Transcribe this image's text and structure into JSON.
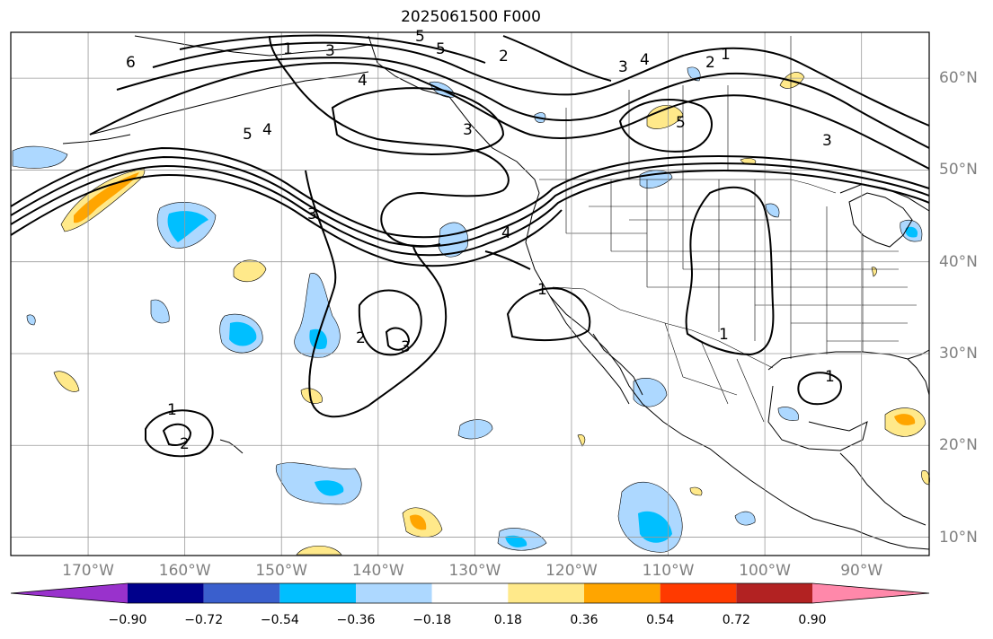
{
  "title": "2025061500 F000",
  "map": {
    "extent": {
      "lon": [
        -178,
        -83
      ],
      "lat": [
        8,
        65
      ]
    },
    "longitude_labels": [
      "170°W",
      "160°W",
      "150°W",
      "140°W",
      "130°W",
      "120°W",
      "110°W",
      "100°W",
      "90°W"
    ],
    "latitude_labels": [
      "60°N",
      "50°N",
      "40°N",
      "30°N",
      "20°N",
      "10°N"
    ],
    "gridlines": true,
    "contour_labels": [
      "6",
      "5",
      "1",
      "3",
      "2",
      "4",
      "5",
      "3",
      "4",
      "2",
      "1",
      "5",
      "4",
      "3",
      "5",
      "3",
      "3",
      "4",
      "1",
      "3",
      "1",
      "1",
      "2",
      "1"
    ]
  },
  "colorbar": {
    "ticks": [
      "−0.90",
      "−0.72",
      "−0.54",
      "−0.36",
      "−0.18",
      "0.18",
      "0.36",
      "0.54",
      "0.72",
      "0.90"
    ],
    "colors": [
      "#9932cc",
      "#00008b",
      "#3a5fcd",
      "#00bfff",
      "#add8ff",
      "#ffffff",
      "#ffe98a",
      "#ffa500",
      "#ff3a00",
      "#b22222",
      "#ff88aa"
    ],
    "extend": "both"
  }
}
